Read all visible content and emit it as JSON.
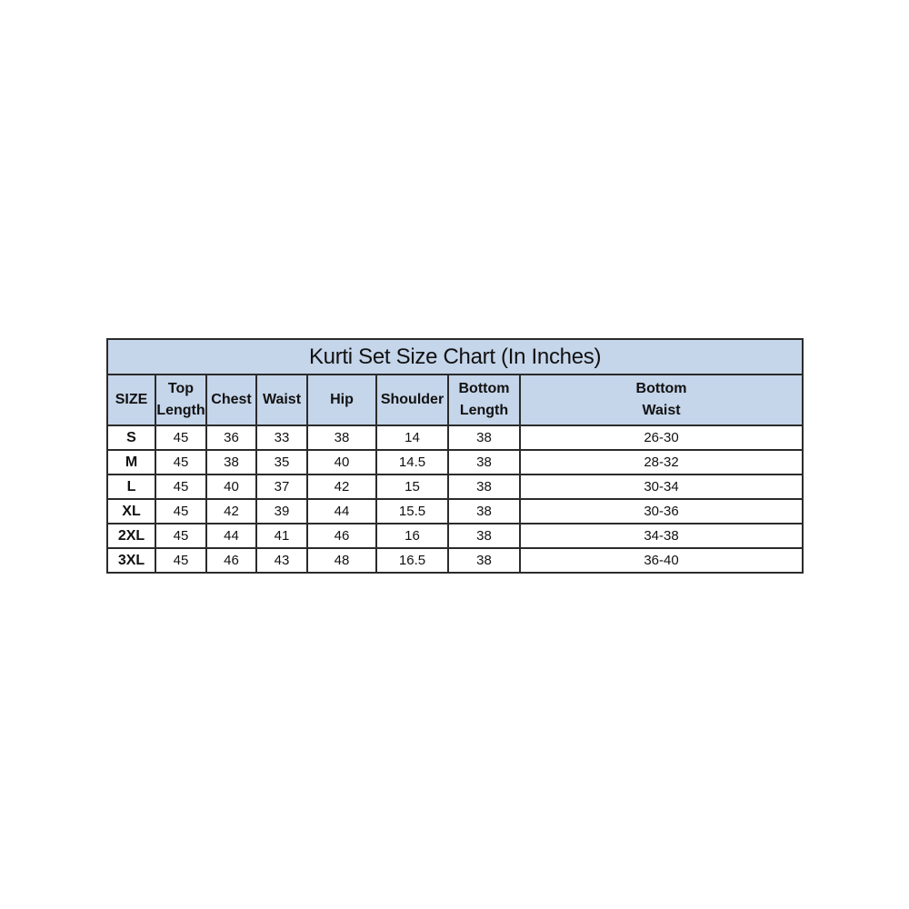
{
  "title": "Kurti Set Size Chart (In Inches)",
  "colors": {
    "header_bg": "#c5d5ea",
    "border": "#2b2b2b"
  },
  "columns": [
    "SIZE",
    "Top\nLength",
    "Chest",
    "Waist",
    "Hip",
    "Shoulder",
    "Bottom\nLength",
    "Bottom\nWaist"
  ],
  "rows": [
    [
      "S",
      "45",
      "36",
      "33",
      "38",
      "14",
      "38",
      "26-30"
    ],
    [
      "M",
      "45",
      "38",
      "35",
      "40",
      "14.5",
      "38",
      "28-32"
    ],
    [
      "L",
      "45",
      "40",
      "37",
      "42",
      "15",
      "38",
      "30-34"
    ],
    [
      "XL",
      "45",
      "42",
      "39",
      "44",
      "15.5",
      "38",
      "30-36"
    ],
    [
      "2XL",
      "45",
      "44",
      "41",
      "46",
      "16",
      "38",
      "34-38"
    ],
    [
      "3XL",
      "45",
      "46",
      "43",
      "48",
      "16.5",
      "38",
      "36-40"
    ]
  ]
}
